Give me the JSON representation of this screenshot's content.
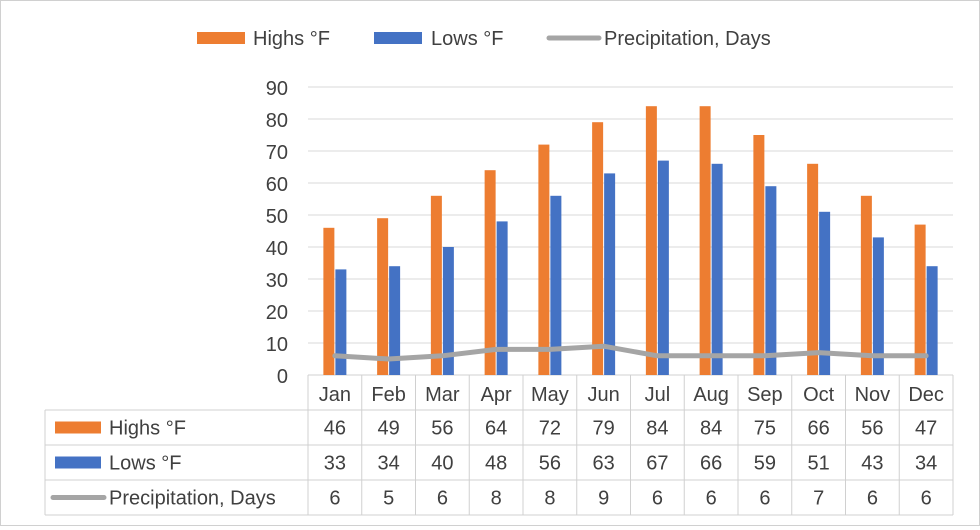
{
  "chart_data": {
    "type": "bar",
    "title": "",
    "xlabel": "",
    "ylabel": "",
    "ylim": [
      0,
      90
    ],
    "yticks": [
      0,
      10,
      20,
      30,
      40,
      50,
      60,
      70,
      80,
      90
    ],
    "grid": true,
    "legend_position": "top",
    "categories": [
      "Jan",
      "Feb",
      "Mar",
      "Apr",
      "May",
      "Jun",
      "Jul",
      "Aug",
      "Sep",
      "Oct",
      "Nov",
      "Dec"
    ],
    "series": [
      {
        "name": "Highs °F",
        "type": "bar",
        "color": "#ED7D31",
        "values": [
          46,
          49,
          56,
          64,
          72,
          79,
          84,
          84,
          75,
          66,
          56,
          47
        ]
      },
      {
        "name": "Lows °F",
        "type": "bar",
        "color": "#4472C4",
        "values": [
          33,
          34,
          40,
          48,
          56,
          63,
          67,
          66,
          59,
          51,
          43,
          34
        ]
      },
      {
        "name": "Precipitation, Days",
        "type": "line",
        "color": "#A5A5A5",
        "values": [
          6,
          5,
          6,
          8,
          8,
          9,
          6,
          6,
          6,
          7,
          6,
          6
        ]
      }
    ],
    "data_table": true
  }
}
